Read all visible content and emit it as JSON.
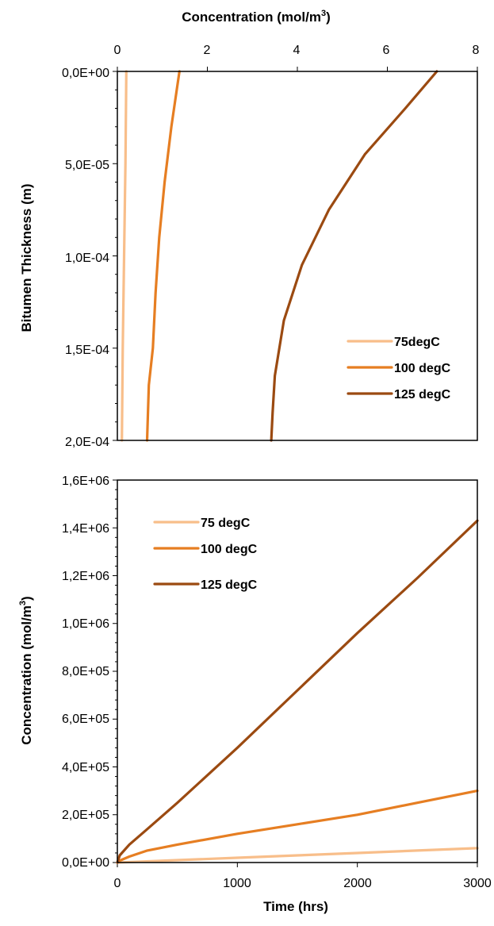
{
  "chart_data": [
    {
      "type": "line",
      "title": "",
      "xlabel": "Concentration (mol/m",
      "xlabel_sup": "3",
      "xlabel_close": ")",
      "ylabel": "Bitumen Thickness (m)",
      "xlim": [
        0,
        8
      ],
      "ylim": [
        0,
        0.0002
      ],
      "y_inverted": true,
      "x_axis_position": "top",
      "xticks": [
        0,
        2,
        4,
        6,
        8
      ],
      "xtick_labels": [
        "0",
        "2",
        "4",
        "6",
        "8"
      ],
      "yticks": [
        0,
        5e-05,
        0.0001,
        0.00015,
        0.0002
      ],
      "ytick_labels": [
        "0,0E+00",
        "5,0E-05",
        "1,0E-04",
        "1,5E-04",
        "2,0E-04"
      ],
      "grid": false,
      "legend_position": "lower-right",
      "series": [
        {
          "name": "75degC",
          "color": "#F8BE8A",
          "points": [
            [
              0.2,
              0
            ],
            [
              0.18,
              5e-05
            ],
            [
              0.15,
              0.0001
            ],
            [
              0.12,
              0.00015
            ],
            [
              0.1,
              0.0002
            ]
          ]
        },
        {
          "name": "100 degC",
          "color": "#E67E22",
          "points": [
            [
              1.38,
              0
            ],
            [
              1.2,
              3e-05
            ],
            [
              1.05,
              6e-05
            ],
            [
              0.93,
              9e-05
            ],
            [
              0.85,
              0.00012
            ],
            [
              0.79,
              0.00015
            ],
            [
              0.7,
              0.00017
            ],
            [
              0.66,
              0.0002
            ]
          ]
        },
        {
          "name": "125 degC",
          "color": "#9B4A11",
          "points": [
            [
              7.1,
              0
            ],
            [
              6.4,
              2e-05
            ],
            [
              5.5,
              4.5e-05
            ],
            [
              4.7,
              7.5e-05
            ],
            [
              4.1,
              0.000105
            ],
            [
              3.7,
              0.000135
            ],
            [
              3.5,
              0.000165
            ],
            [
              3.45,
              0.000185
            ],
            [
              3.42,
              0.0002
            ]
          ]
        }
      ]
    },
    {
      "type": "line",
      "title": "",
      "xlabel": "Time (hrs)",
      "ylabel": "Concentration (mol/m",
      "ylabel_sup": "3",
      "ylabel_close": ")",
      "xlim": [
        0,
        3000
      ],
      "ylim": [
        0,
        1600000
      ],
      "xticks": [
        0,
        1000,
        2000,
        3000
      ],
      "xtick_labels": [
        "0",
        "1000",
        "2000",
        "3000"
      ],
      "yticks": [
        0,
        200000,
        400000,
        600000,
        800000,
        1000000,
        1200000,
        1400000,
        1600000
      ],
      "ytick_labels": [
        "0,0E+00",
        "2,0E+05",
        "4,0E+05",
        "6,0E+05",
        "8,0E+05",
        "1,0E+06",
        "1,2E+06",
        "1,4E+06",
        "1,6E+06"
      ],
      "grid": false,
      "legend_position": "upper-left",
      "series": [
        {
          "name": "75 degC",
          "color": "#F8BE8A",
          "points": [
            [
              0,
              0
            ],
            [
              50,
              1000
            ],
            [
              200,
              4000
            ],
            [
              500,
              10000
            ],
            [
              1000,
              20000
            ],
            [
              1500,
              30000
            ],
            [
              2000,
              40000
            ],
            [
              2500,
              50000
            ],
            [
              3000,
              60000
            ]
          ]
        },
        {
          "name": "100 degC",
          "color": "#E67E22",
          "points": [
            [
              0,
              0
            ],
            [
              20,
              8000
            ],
            [
              100,
              25000
            ],
            [
              250,
              50000
            ],
            [
              500,
              75000
            ],
            [
              1000,
              120000
            ],
            [
              1500,
              160000
            ],
            [
              2000,
              200000
            ],
            [
              2500,
              250000
            ],
            [
              3000,
              300000
            ]
          ]
        },
        {
          "name": "125 degC",
          "color": "#9B4A11",
          "points": [
            [
              0,
              0
            ],
            [
              20,
              30000
            ],
            [
              100,
              75000
            ],
            [
              250,
              140000
            ],
            [
              500,
              250000
            ],
            [
              1000,
              480000
            ],
            [
              1500,
              720000
            ],
            [
              2000,
              960000
            ],
            [
              2500,
              1190000
            ],
            [
              3000,
              1430000
            ]
          ]
        }
      ]
    }
  ]
}
